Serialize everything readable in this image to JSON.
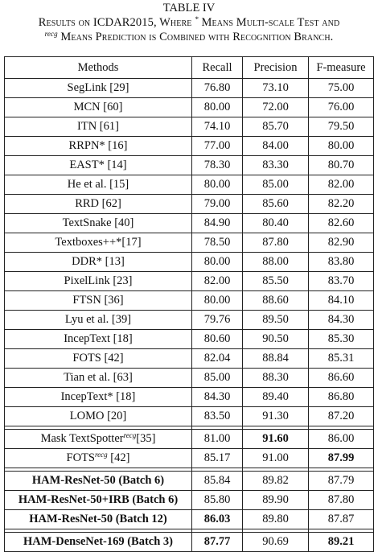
{
  "caption": {
    "title": "TABLE IV",
    "line1_prefix": "Results on ICDAR2015, Where",
    "line1_star": "*",
    "line1_suffix": "Means Multi-scale Test and",
    "line2_sup": "recg",
    "line2_rest": "Means Prediction is Combined with Recognition Branch."
  },
  "table": {
    "headers": [
      "Methods",
      "Recall",
      "Precision",
      "F-measure"
    ],
    "rows": [
      {
        "method": "SegLink [29]",
        "recall": "76.80",
        "precision": "73.10",
        "fmeasure": "75.00"
      },
      {
        "method": "MCN [60]",
        "recall": "80.00",
        "precision": "72.00",
        "fmeasure": "76.00"
      },
      {
        "method": "ITN [61]",
        "recall": "74.10",
        "precision": "85.70",
        "fmeasure": "79.50"
      },
      {
        "method": "RRPN* [16]",
        "recall": "77.00",
        "precision": "84.00",
        "fmeasure": "80.00"
      },
      {
        "method": "EAST* [14]",
        "recall": "78.30",
        "precision": "83.30",
        "fmeasure": "80.70"
      },
      {
        "method": "He et al. [15]",
        "recall": "80.00",
        "precision": "85.00",
        "fmeasure": "82.00"
      },
      {
        "method": "RRD [62]",
        "recall": "79.00",
        "precision": "85.60",
        "fmeasure": "82.20"
      },
      {
        "method": "TextSnake [40]",
        "recall": "84.90",
        "precision": "80.40",
        "fmeasure": "82.60"
      },
      {
        "method": "Textboxes++*[17]",
        "recall": "78.50",
        "precision": "87.80",
        "fmeasure": "82.90"
      },
      {
        "method": "DDR* [13]",
        "recall": "80.00",
        "precision": "88.00",
        "fmeasure": "83.80"
      },
      {
        "method": "PixelLink [23]",
        "recall": "82.00",
        "precision": "85.50",
        "fmeasure": "83.70"
      },
      {
        "method": "FTSN [36]",
        "recall": "80.00",
        "precision": "88.60",
        "fmeasure": "84.10"
      },
      {
        "method": "Lyu et al. [39]",
        "recall": "79.76",
        "precision": "89.50",
        "fmeasure": "84.30"
      },
      {
        "method": "IncepText [18]",
        "recall": "80.60",
        "precision": "90.50",
        "fmeasure": "85.30"
      },
      {
        "method": "FOTS [42]",
        "recall": "82.04",
        "precision": "88.84",
        "fmeasure": "85.31"
      },
      {
        "method": "Tian et al. [63]",
        "recall": "85.00",
        "precision": "88.30",
        "fmeasure": "86.60"
      },
      {
        "method": "IncepText* [18]",
        "recall": "84.30",
        "precision": "89.40",
        "fmeasure": "86.80"
      },
      {
        "method": "LOMO [20]",
        "recall": "83.50",
        "precision": "91.30",
        "fmeasure": "87.20"
      }
    ],
    "recg_rows": [
      {
        "method_base": "Mask TextSpotter",
        "method_sup": "recg",
        "method_ref": "[35]",
        "recall": "81.00",
        "precision": "91.60",
        "fmeasure": "86.00"
      },
      {
        "method_base": "FOTS",
        "method_sup": "recg",
        "method_ref": " [42]",
        "recall": "85.17",
        "precision": "91.00",
        "fmeasure": "87.99"
      }
    ],
    "ham_rows": [
      {
        "method": "HAM-ResNet-50 (Batch 6)",
        "recall": "85.84",
        "precision": "89.82",
        "fmeasure": "87.79"
      },
      {
        "method": "HAM-ResNet-50+IRB (Batch 6)",
        "recall": "85.80",
        "precision": "89.90",
        "fmeasure": "87.80"
      },
      {
        "method": "HAM-ResNet-50 (Batch 12)",
        "recall": "86.03",
        "precision": "89.80",
        "fmeasure": "87.87"
      }
    ],
    "dense_row": {
      "method": "HAM-DenseNet-169 (Batch 3)",
      "recall": "87.77",
      "precision": "90.69",
      "fmeasure": "89.21"
    }
  }
}
